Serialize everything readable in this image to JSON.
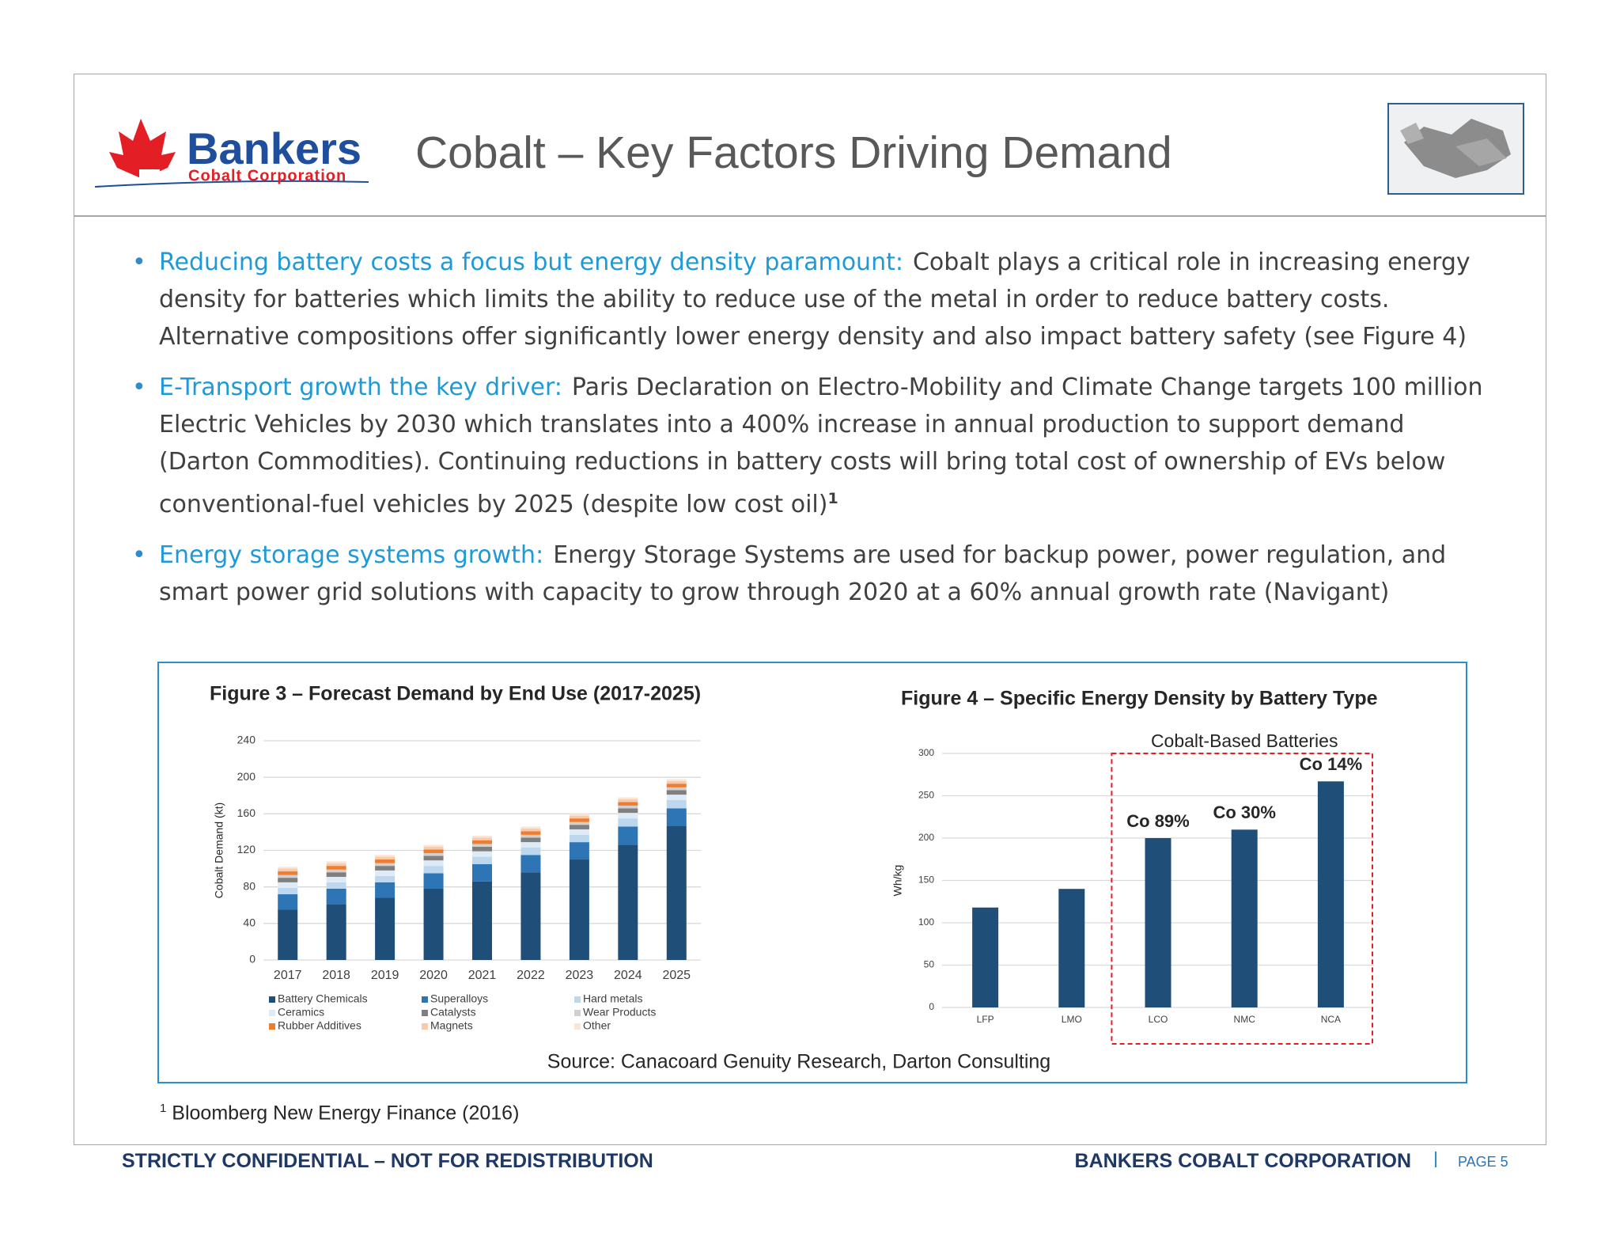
{
  "header": {
    "logo_name": "Bankers",
    "logo_sub": "Cobalt Corporation",
    "title": "Cobalt – Key Factors Driving Demand"
  },
  "bullets": [
    {
      "heading": "Reducing battery costs a focus but energy density paramount:",
      "text": "Cobalt plays a critical role in increasing energy density for batteries which limits the ability to reduce use of the metal in order to reduce battery costs.  Alternative compositions offer significantly lower energy density and also impact battery safety (see Figure 4)"
    },
    {
      "heading": "E-Transport growth the key driver:",
      "text": "Paris Declaration on Electro-Mobility and Climate Change targets 100 million Electric Vehicles by 2030 which translates into a 400% increase in annual production to support demand  (Darton Commodities).  Continuing reductions in battery costs will bring total cost of ownership of EVs below conventional-fuel vehicles by 2025 (despite low cost oil)",
      "footnote_ref": "1"
    },
    {
      "heading": "Energy storage systems growth:",
      "text": "Energy Storage Systems are used for backup power, power regulation, and smart power grid solutions with capacity to grow through 2020 at a 60% annual growth rate (Navigant)"
    }
  ],
  "chart_data": [
    {
      "type": "stacked-bar",
      "title": "Figure 3 – Forecast Demand by End Use (2017-2025)",
      "y_label": "Cobalt Demand (kt)",
      "categories": [
        "2017",
        "2018",
        "2019",
        "2020",
        "2021",
        "2022",
        "2023",
        "2024",
        "2025"
      ],
      "series": [
        {
          "name": "Battery Chemicals",
          "color": "#1f4e79",
          "values": [
            55,
            61,
            68,
            78,
            86,
            96,
            110,
            126,
            147
          ]
        },
        {
          "name": "Superalloys",
          "color": "#2e75b6",
          "values": [
            17,
            17,
            17,
            17,
            19,
            19,
            19,
            20,
            19
          ]
        },
        {
          "name": "Hard metals",
          "color": "#bdd7ee",
          "values": [
            7,
            7,
            7,
            8,
            8,
            8,
            8,
            9,
            9
          ]
        },
        {
          "name": "Ceramics",
          "color": "#deebf7",
          "values": [
            6,
            6,
            6,
            6,
            6,
            6,
            6,
            6,
            6
          ]
        },
        {
          "name": "Catalysts",
          "color": "#7f7f7f",
          "values": [
            5,
            5,
            5,
            5,
            5,
            5,
            5,
            5,
            5
          ]
        },
        {
          "name": "Wear Products",
          "color": "#d0d0d0",
          "values": [
            3,
            3,
            3,
            3,
            3,
            3,
            3,
            3,
            3
          ]
        },
        {
          "name": "Rubber Additives",
          "color": "#ed7d31",
          "values": [
            4,
            4,
            4,
            4,
            4,
            4,
            4,
            4,
            4
          ]
        },
        {
          "name": "Magnets",
          "color": "#f8cbad",
          "values": [
            3,
            3,
            3,
            3,
            3,
            3,
            3,
            3,
            3
          ]
        },
        {
          "name": "Other",
          "color": "#fbe5d6",
          "values": [
            2,
            2,
            2,
            2,
            2,
            2,
            2,
            2,
            2
          ]
        }
      ],
      "ylim": [
        0,
        240
      ],
      "yticks": [
        0,
        40,
        80,
        120,
        160,
        200,
        240
      ],
      "grid": true
    },
    {
      "type": "bar",
      "title": "Figure 4 – Specific Energy Density by Battery Type",
      "y_label": "Wh/kg",
      "categories": [
        "LFP",
        "LMO",
        "LCO",
        "NMC",
        "NCA"
      ],
      "values": [
        118,
        140,
        200,
        210,
        267
      ],
      "color": "#1f4e79",
      "ylim": [
        0,
        300
      ],
      "yticks": [
        0,
        50,
        100,
        150,
        200,
        250,
        300
      ],
      "grid": true,
      "group_label": "Cobalt-Based Batteries",
      "annotations": [
        "Co 89%",
        "Co 30%",
        "Co 14%"
      ]
    }
  ],
  "source": "Source:  Canacoard Genuity Research, Darton Consulting",
  "footnote": {
    "marker": "1",
    "text": "Bloomberg New Energy Finance (2016)"
  },
  "footer": {
    "left": "STRICTLY CONFIDENTIAL – NOT FOR REDISTRIBUTION",
    "right": "BANKERS COBALT CORPORATION",
    "page": "PAGE 5"
  }
}
